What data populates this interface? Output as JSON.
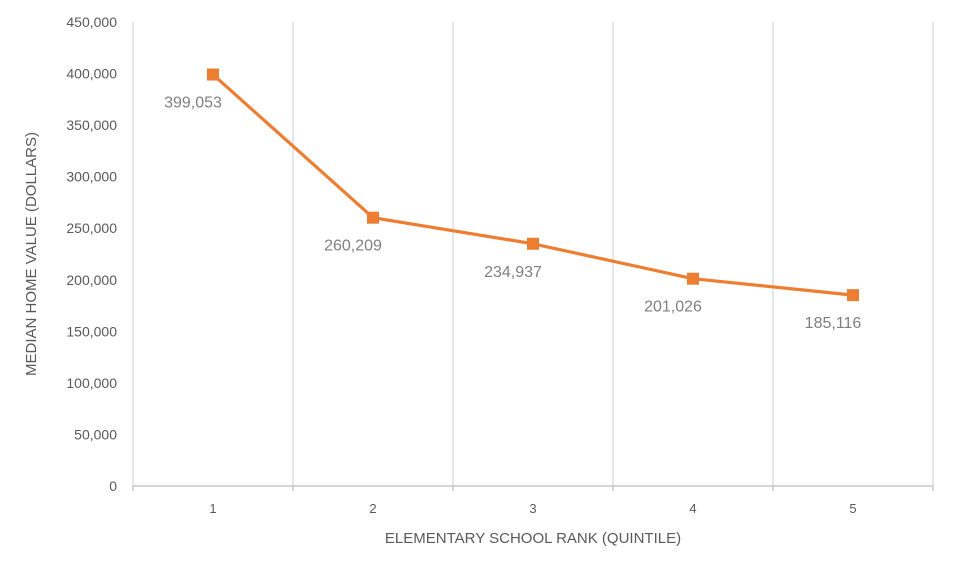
{
  "chart_data": {
    "type": "line",
    "title": "",
    "xlabel": "ELEMENTARY SCHOOL RANK (QUINTILE)",
    "ylabel": "MEDIAN HOME VALUE (DOLLARS)",
    "categories": [
      "1",
      "2",
      "3",
      "4",
      "5"
    ],
    "series": [
      {
        "values": [
          399053,
          260209,
          234937,
          201026,
          185116
        ],
        "color": "#ED7D31",
        "marker": "square"
      }
    ],
    "data_labels": [
      "399,053",
      "260,209",
      "234,937",
      "201,026",
      "185,116"
    ],
    "ylim": [
      0,
      450000
    ],
    "yticks": [
      0,
      50000,
      100000,
      150000,
      200000,
      250000,
      300000,
      350000,
      400000,
      450000
    ],
    "ytick_labels": [
      "0",
      "50,000",
      "100,000",
      "150,000",
      "200,000",
      "250,000",
      "300,000",
      "350,000",
      "400,000",
      "450,000"
    ],
    "grid": "vertical",
    "legend": "none",
    "colors": {
      "line": "#ED7D31",
      "grid": "#d9d9d9",
      "axis": "#bfbfbf",
      "text": "#595959",
      "label": "#7f7f7f"
    }
  }
}
